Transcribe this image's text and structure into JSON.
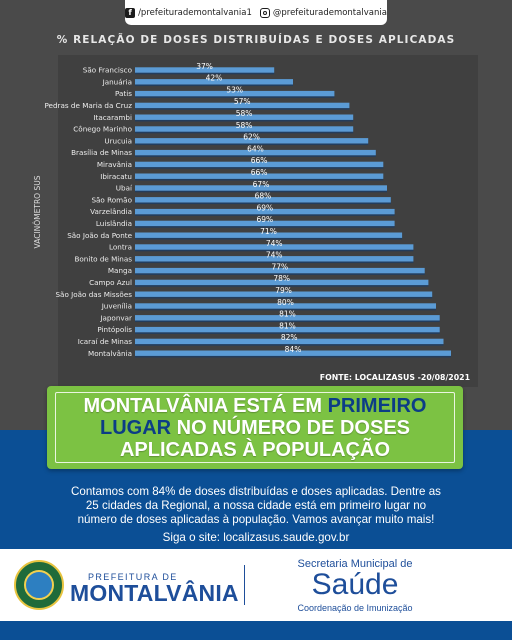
{
  "social": {
    "facebook_icon": "facebook-icon",
    "facebook": "/prefeiturademontalvania1",
    "instagram_icon": "instagram-icon",
    "instagram": "@prefeiturademontalvania"
  },
  "chart_data": {
    "type": "bar",
    "orientation": "horizontal",
    "title": "% RELAÇÃO DE DOSES DISTRIBUÍDAS E DOSES APLICADAS",
    "ylabel": "VACINÔMETRO SUS",
    "source": "FONTE: LOCALIZASUS -20/08/2021",
    "xlim": [
      0,
      100
    ],
    "grid": false,
    "colors": {
      "bar": "#5b9bd5",
      "background": "#404040"
    },
    "categories": [
      "São Francisco",
      "Januária",
      "Patis",
      "Pedras de Maria da Cruz",
      "Itacarambi",
      "Cônego Marinho",
      "Urucuia",
      "Brasília de Minas",
      "Miravânia",
      "Ibiracatu",
      "Ubaí",
      "São Romão",
      "Varzelândia",
      "Luislândia",
      "São João da Ponte",
      "Lontra",
      "Bonito de Minas",
      "Manga",
      "Campo Azul",
      "São João das Missões",
      "Juvenília",
      "Japonvar",
      "Pintópolis",
      "Icaraí de Minas",
      "Montalvânia"
    ],
    "values": [
      37,
      42,
      53,
      57,
      58,
      58,
      62,
      64,
      66,
      66,
      67,
      68,
      69,
      69,
      71,
      74,
      74,
      77,
      78,
      79,
      80,
      81,
      81,
      82,
      84
    ],
    "labels": [
      "37%",
      "42%",
      "53%",
      "57%",
      "58%",
      "58%",
      "62%",
      "64%",
      "66%",
      "66%",
      "67%",
      "68%",
      "69%",
      "69%",
      "71%",
      "74%",
      "74%",
      "77%",
      "78%",
      "79%",
      "80%",
      "81%",
      "81%",
      "82%",
      "84%"
    ]
  },
  "headline": {
    "line1_a": "MONTALVÂNIA ESTÁ EM ",
    "line1_b": "PRIMEIRO",
    "line2_a": "LUGAR",
    "line2_b": " NO NÚMERO DE DOSES",
    "line3": "APLICADAS À POPULAÇÃO",
    "accent": "#7cc243",
    "highlight": "#0c3d86"
  },
  "body": {
    "line1": "Contamos com 84% de doses distribuídas e doses aplicadas. Dentre as",
    "line2": "25 cidades da Regional, a nossa cidade está em primeiro lugar no",
    "line3": "número de doses aplicadas à população. Vamos avançar muito mais!",
    "site": "Siga o site: localizasus.saude.gov.br"
  },
  "footer": {
    "seal_icon": "municipal-seal-icon",
    "seal_text": "MONTALVÂNIA",
    "pref_small": "PREFEITURA DE",
    "pref_big": "MONTALVÂNIA",
    "sec_line1": "Secretaria Municipal de",
    "sec_line2": "Saúde",
    "sec_line3": "Coordenação de Imunização"
  }
}
